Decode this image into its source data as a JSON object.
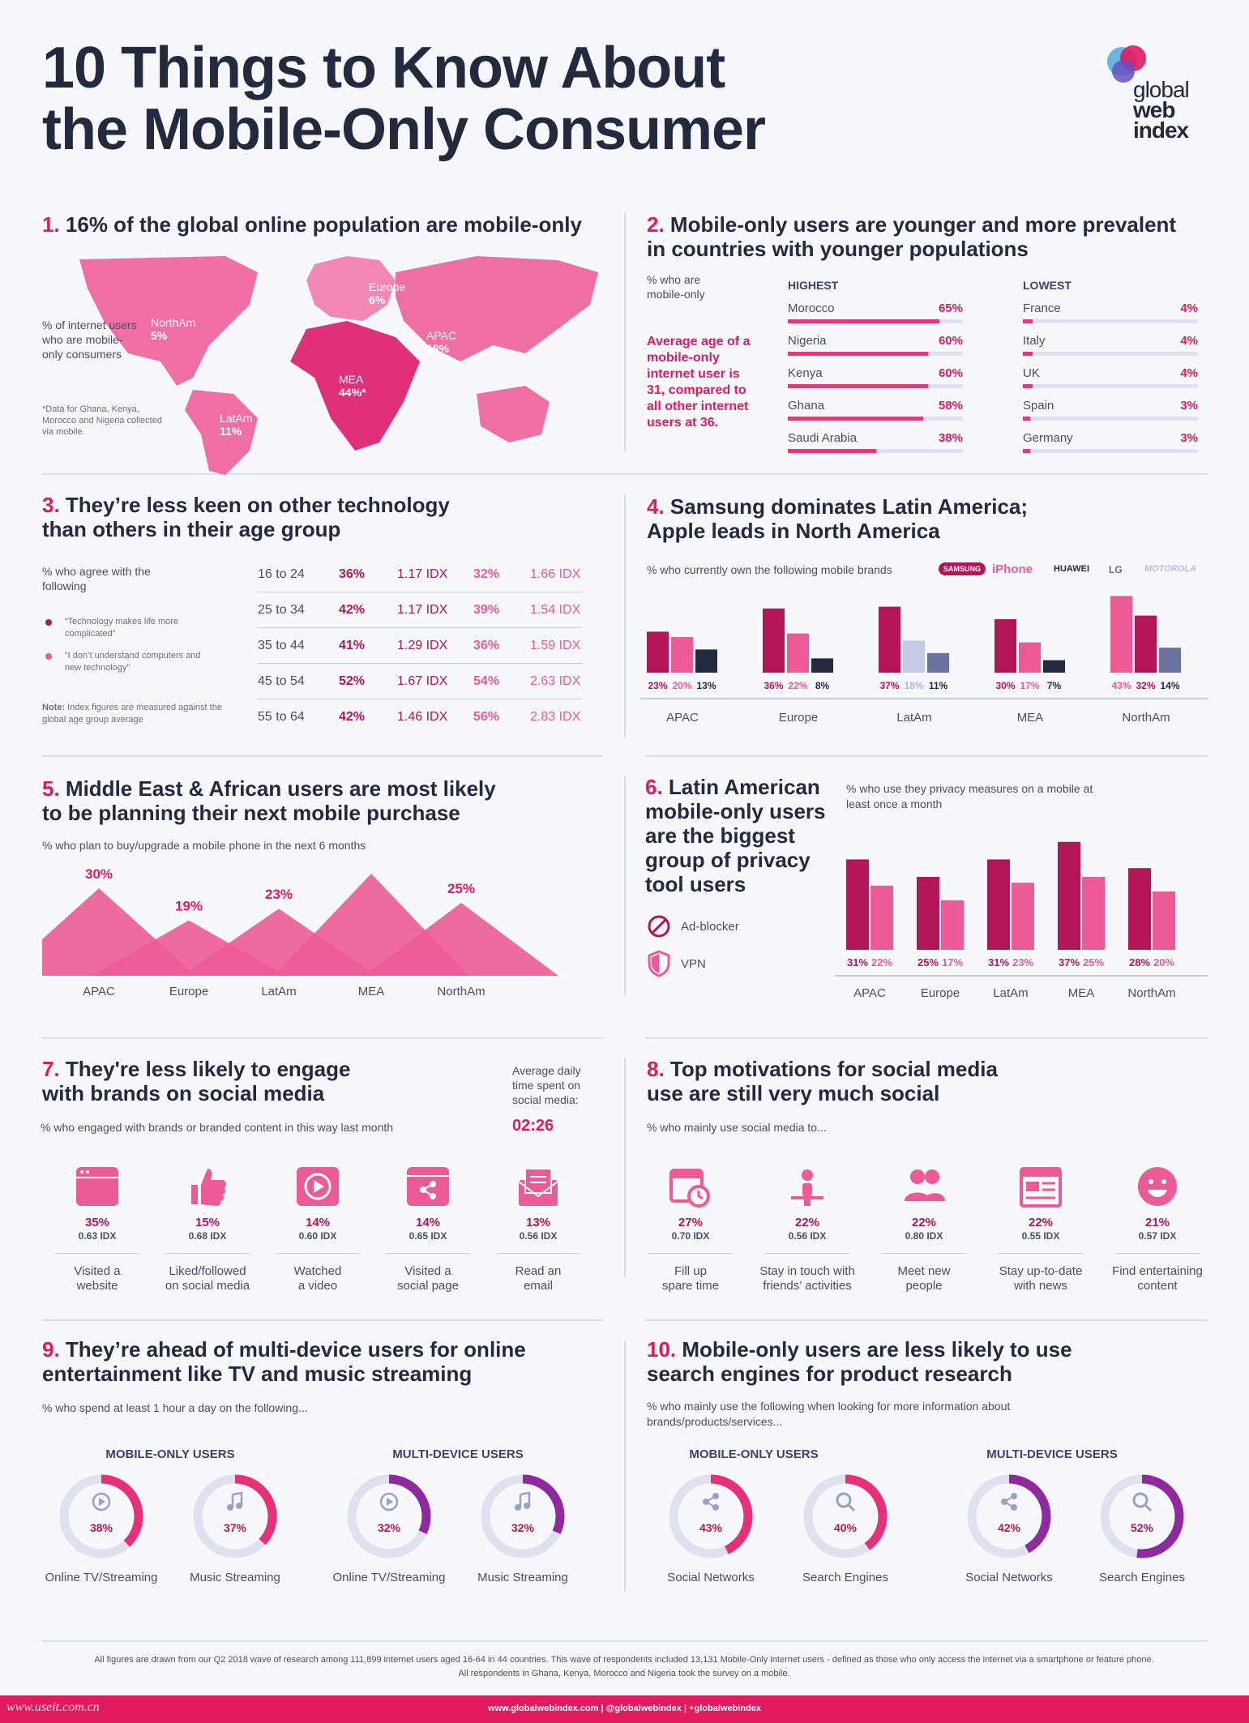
{
  "header": {
    "title_line1": "10 Things to Know About",
    "title_line2": "the Mobile-Only Consumer",
    "logo": {
      "line1": "global",
      "line2": "web",
      "line3": "index"
    }
  },
  "s1": {
    "num": "1.",
    "title": "16% of the global online population are mobile-only",
    "note": "% of internet users who are mobile-only consumers",
    "footnote": "*Data for Ghana, Kenya, Morocco and Nigeria collected via mobile.",
    "regions": [
      {
        "name": "NorthAm",
        "value": "5%"
      },
      {
        "name": "Europe",
        "value": "6%"
      },
      {
        "name": "APAC",
        "value": "18%"
      },
      {
        "name": "MEA",
        "value": "44%*"
      },
      {
        "name": "LatAm",
        "value": "11%"
      }
    ]
  },
  "s2": {
    "num": "2.",
    "title_l1": "Mobile-only users are younger and more prevalent",
    "title_l2": "in countries with younger populations",
    "label": "% who are mobile-only",
    "highlight": "Average age of a mobile-only internet user is 31, compared to all other internet users at 36.",
    "highest_h": "HIGHEST",
    "lowest_h": "LOWEST",
    "highest": [
      {
        "country": "Morocco",
        "value": "65%",
        "pct": 65
      },
      {
        "country": "Nigeria",
        "value": "60%",
        "pct": 60
      },
      {
        "country": "Kenya",
        "value": "60%",
        "pct": 60
      },
      {
        "country": "Ghana",
        "value": "58%",
        "pct": 58
      },
      {
        "country": "Saudi Arabia",
        "value": "38%",
        "pct": 38
      }
    ],
    "lowest": [
      {
        "country": "France",
        "value": "4%",
        "pct": 4
      },
      {
        "country": "Italy",
        "value": "4%",
        "pct": 4
      },
      {
        "country": "UK",
        "value": "4%",
        "pct": 4
      },
      {
        "country": "Spain",
        "value": "3%",
        "pct": 3
      },
      {
        "country": "Germany",
        "value": "3%",
        "pct": 3
      }
    ]
  },
  "s3": {
    "num": "3.",
    "title_l1": "They’re less keen on other technology",
    "title_l2": "than others in their age group",
    "label": "% who agree with the following",
    "legend1": "“Technology makes life more complicated”",
    "legend2": "“I don’t understand computers and new technology”",
    "note_bold": "Note:",
    "note": "Index figures are measured against the global age group average",
    "rows": [
      {
        "age": "16 to 24",
        "a": "36%",
        "ai": "1.17 IDX",
        "b": "32%",
        "bi": "1.66 IDX"
      },
      {
        "age": "25 to 34",
        "a": "42%",
        "ai": "1.17 IDX",
        "b": "39%",
        "bi": "1.54 IDX"
      },
      {
        "age": "35 to 44",
        "a": "41%",
        "ai": "1.29 IDX",
        "b": "36%",
        "bi": "1.59 IDX"
      },
      {
        "age": "45 to 54",
        "a": "52%",
        "ai": "1.67 IDX",
        "b": "54%",
        "bi": "2.63 IDX"
      },
      {
        "age": "55 to 64",
        "a": "42%",
        "ai": "1.46 IDX",
        "b": "56%",
        "bi": "2.83 IDX"
      }
    ]
  },
  "s4": {
    "num": "4.",
    "title_l1": "Samsung dominates Latin America;",
    "title_l2": "Apple leads in North America",
    "label": "% who currently own the following mobile brands",
    "brands": [
      "SAMSUNG",
      "iPhone",
      "HUAWEI",
      "LG",
      "MOTOROLA"
    ]
  },
  "s5": {
    "num": "5.",
    "title_l1": "Middle East & African users are most likely",
    "title_l2": "to be planning their next mobile purchase",
    "label": "% who plan to buy/upgrade a mobile phone in the next 6 months"
  },
  "s6": {
    "num": "6.",
    "title_l1": "Latin American",
    "title_l2": "mobile-only users",
    "title_l3": "are the biggest",
    "title_l4": "group of privacy",
    "title_l5": "tool users",
    "label": "% who use they privacy measures on a mobile at least once a month",
    "legend_a": "Ad-blocker",
    "legend_b": "VPN"
  },
  "s7": {
    "num": "7.",
    "title_l1": "They're less likely to engage",
    "title_l2": "with brands on social media",
    "label": "% who engaged with brands or branded content in this way last month",
    "avg_label": "Average daily time spent on social media:",
    "avg_value": "02:26",
    "items": [
      {
        "icon": "browser-icon",
        "p": "35%",
        "i": "0.63 IDX",
        "l1": "Visited a",
        "l2": "website"
      },
      {
        "icon": "thumbs-up-icon",
        "p": "15%",
        "i": "0.68 IDX",
        "l1": "Liked/followed",
        "l2": "on social media"
      },
      {
        "icon": "play-icon",
        "p": "14%",
        "i": "0.60 IDX",
        "l1": "Watched",
        "l2": "a video"
      },
      {
        "icon": "share-icon",
        "p": "14%",
        "i": "0.65 IDX",
        "l1": "Visited a",
        "l2": "social page"
      },
      {
        "icon": "email-icon",
        "p": "13%",
        "i": "0.56 IDX",
        "l1": "Read an",
        "l2": "email"
      }
    ]
  },
  "s8": {
    "num": "8.",
    "title_l1": "Top motivations for social media",
    "title_l2": "use are still very much social",
    "label": "% who mainly use social media to...",
    "items": [
      {
        "icon": "calendar-clock-icon",
        "p": "27%",
        "i": "0.70 IDX",
        "l1": "Fill up",
        "l2": "spare time"
      },
      {
        "icon": "person-icon",
        "p": "22%",
        "i": "0.56 IDX",
        "l1": "Stay in touch with",
        "l2": "friends’ activities"
      },
      {
        "icon": "people-icon",
        "p": "22%",
        "i": "0.80 IDX",
        "l1": "Meet new",
        "l2": "people"
      },
      {
        "icon": "newspaper-icon",
        "p": "22%",
        "i": "0.55 IDX",
        "l1": "Stay up-to-date",
        "l2": "with news"
      },
      {
        "icon": "smiley-icon",
        "p": "21%",
        "i": "0.57 IDX",
        "l1": "Find entertaining",
        "l2": "content"
      }
    ]
  },
  "s9": {
    "num": "9.",
    "title_l1": "They’re ahead of multi-device users for online",
    "title_l2": "entertainment like TV and music streaming",
    "label": "% who spend at least 1 hour a day on the following...",
    "group_a": "MOBILE-ONLY USERS",
    "group_b": "MULTI-DEVICE USERS",
    "donuts": [
      {
        "icon": "play-icon",
        "value": "38%",
        "pct": 38,
        "label": "Online TV/Streaming",
        "color": "#e8307a"
      },
      {
        "icon": "music-icon",
        "value": "37%",
        "pct": 37,
        "label": "Music Streaming",
        "color": "#e8307a"
      },
      {
        "icon": "play-icon",
        "value": "32%",
        "pct": 32,
        "label": "Online TV/Streaming",
        "color": "#8e2a9e"
      },
      {
        "icon": "music-icon",
        "value": "32%",
        "pct": 32,
        "label": "Music Streaming",
        "color": "#8e2a9e"
      }
    ]
  },
  "s10": {
    "num": "10.",
    "title_l1": "Mobile-only users are less likely to use",
    "title_l2": "search engines for product research",
    "label": "% who mainly use the following when looking for more information about brands/products/services...",
    "group_a": "MOBILE-ONLY USERS",
    "group_b": "MULTI-DEVICE USERS",
    "donuts": [
      {
        "icon": "share-icon",
        "value": "43%",
        "pct": 43,
        "label": "Social Networks",
        "color": "#e8307a"
      },
      {
        "icon": "search-icon",
        "value": "40%",
        "pct": 40,
        "label": "Search Engines",
        "color": "#e8307a"
      },
      {
        "icon": "share-icon",
        "value": "42%",
        "pct": 42,
        "label": "Social Networks",
        "color": "#8e2a9e"
      },
      {
        "icon": "search-icon",
        "value": "52%",
        "pct": 52,
        "label": "Search Engines",
        "color": "#8e2a9e"
      }
    ]
  },
  "footer": {
    "line1": "All figures are drawn from our Q2 2018 wave of research among 111,899 internet users aged 16-64 in 44 countries. This wave of respondents included 13,131 Mobile-Only internet users - defined as those who only access the internet via a smartphone or feature phone.",
    "line2": "All respondents in Ghana, Kenya, Morocco and Nigeria took the survey on a mobile.",
    "links": "www.globalwebindex.com   |   @globalwebindex   |   +globalwebindex",
    "watermark": "www.useit.com.cn"
  },
  "colors": {
    "accent": "#e1195f",
    "magenta": "#b41556",
    "pink": "#ec5b95",
    "dark": "#232a3e",
    "purple": "#8e2a9e"
  },
  "chart_data": [
    {
      "type": "bar",
      "title": "Samsung dominates Latin America; Apple leads in North America",
      "categories": [
        "APAC",
        "Europe",
        "LatAm",
        "MEA",
        "NorthAm"
      ],
      "series": [
        {
          "name": "SAMSUNG",
          "values": [
            23,
            36,
            37,
            30,
            32
          ],
          "labels": [
            "23%",
            "36%",
            "37%",
            "30%",
            "32%"
          ]
        },
        {
          "name": "iPhone",
          "values": [
            20,
            22,
            18,
            17,
            43
          ],
          "labels": [
            "20%",
            "22%",
            "18%",
            "17%",
            "43%"
          ]
        },
        {
          "name": "Third brand",
          "values": [
            13,
            8,
            11,
            7,
            14
          ],
          "labels": [
            "13%",
            "8%",
            "11%",
            "7%",
            "14%"
          ]
        }
      ]
    },
    {
      "type": "area",
      "title": "Middle East & African users are most likely to be planning their next mobile purchase",
      "categories": [
        "APAC",
        "Europe",
        "LatAm",
        "MEA",
        "NorthAm"
      ],
      "values": [
        30,
        19,
        23,
        35,
        25
      ],
      "labels": [
        "30%",
        "19%",
        "23%",
        "35%",
        "25%"
      ]
    },
    {
      "type": "bar",
      "title": "Latin American mobile-only users are the biggest group of privacy tool users",
      "categories": [
        "APAC",
        "Europe",
        "LatAm",
        "MEA",
        "NorthAm"
      ],
      "series": [
        {
          "name": "Ad-blocker",
          "values": [
            31,
            25,
            31,
            37,
            28
          ],
          "labels": [
            "31%",
            "25%",
            "31%",
            "37%",
            "28%"
          ]
        },
        {
          "name": "VPN",
          "values": [
            22,
            17,
            23,
            25,
            20
          ],
          "labels": [
            "22%",
            "17%",
            "23%",
            "25%",
            "20%"
          ]
        }
      ]
    }
  ]
}
